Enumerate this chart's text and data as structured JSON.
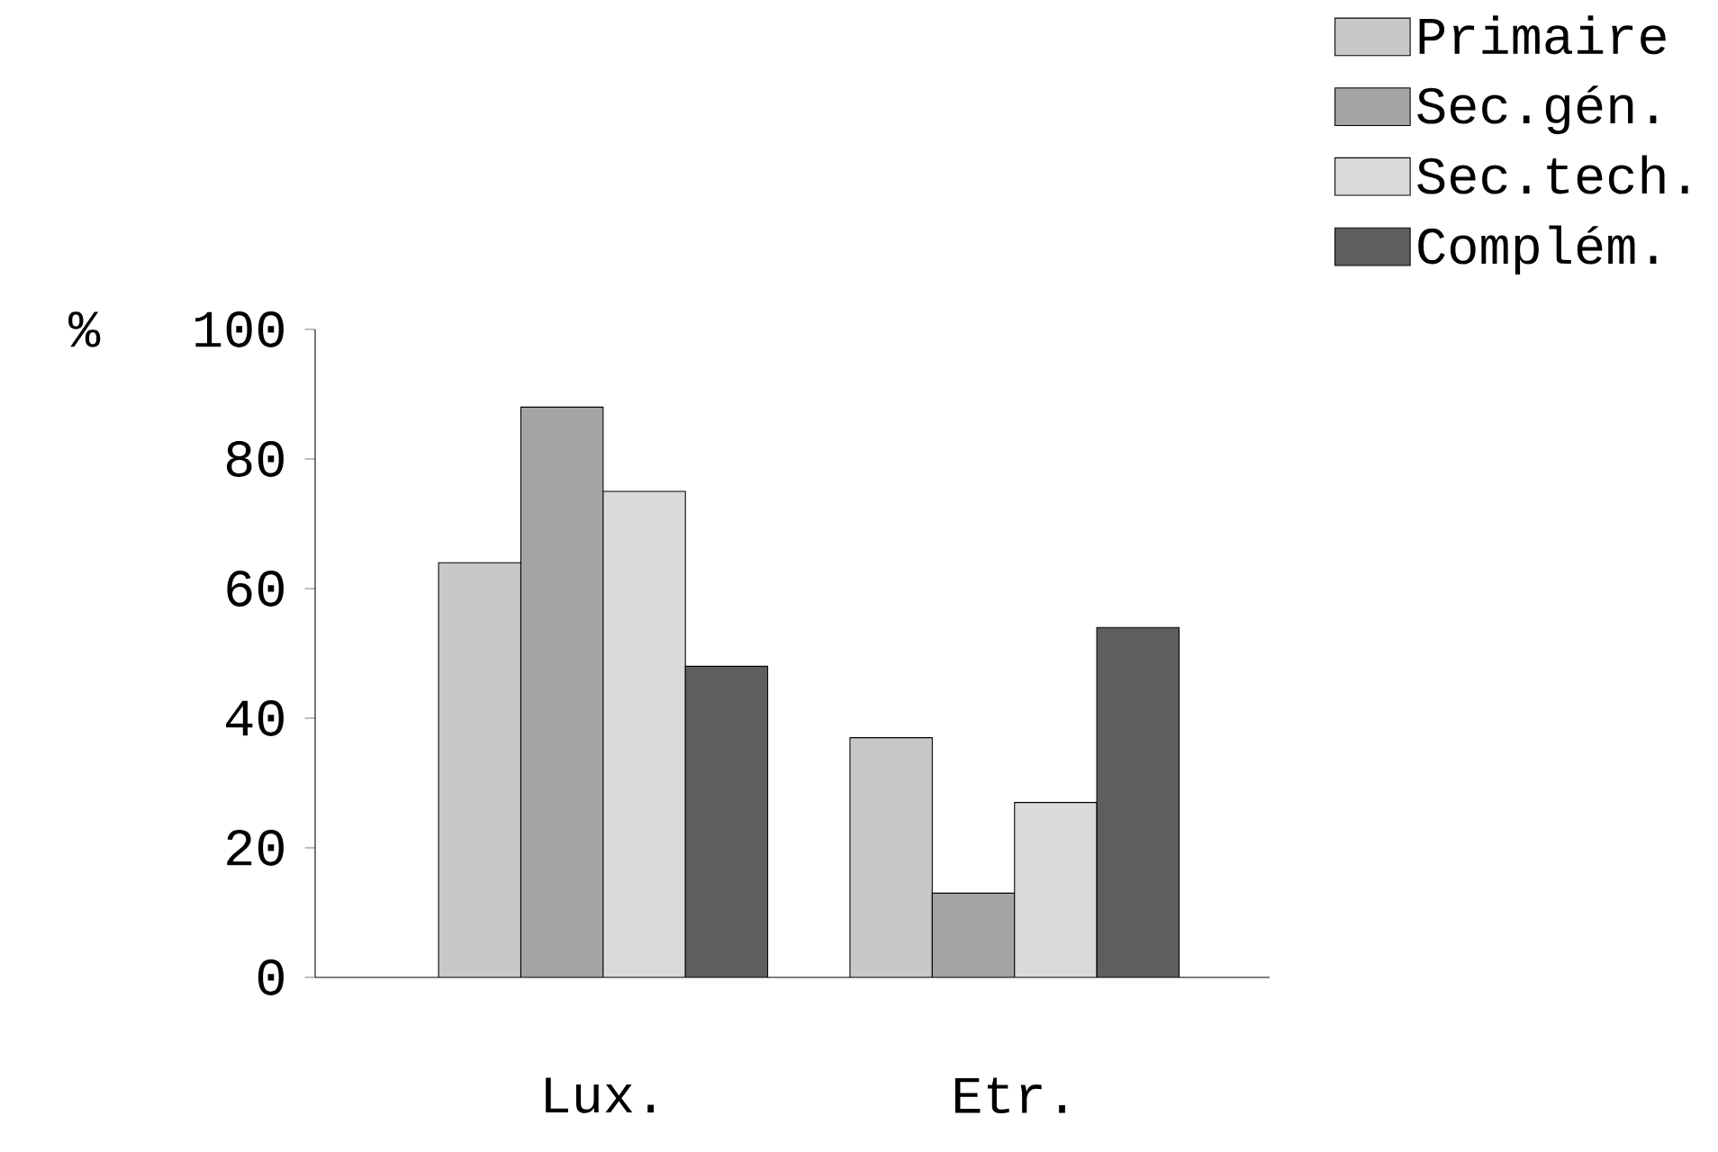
{
  "chart_data": {
    "type": "bar",
    "ylabel": "%",
    "categories": [
      "Lux.",
      "Etr."
    ],
    "series": [
      {
        "name": "Primaire",
        "color": "#c8c8c8",
        "values": [
          64,
          37
        ]
      },
      {
        "name": "Sec.gén.",
        "color": "#a4a4a4",
        "values": [
          88,
          13
        ]
      },
      {
        "name": "Sec.tech.",
        "color": "#dadada",
        "values": [
          75,
          27
        ]
      },
      {
        "name": "Complém.",
        "color": "#5e5e5e",
        "values": [
          48,
          54
        ]
      }
    ],
    "ylim": [
      0,
      100
    ],
    "yticks": [
      0,
      20,
      40,
      60,
      80,
      100
    ],
    "grid": false,
    "legend": "top right"
  }
}
